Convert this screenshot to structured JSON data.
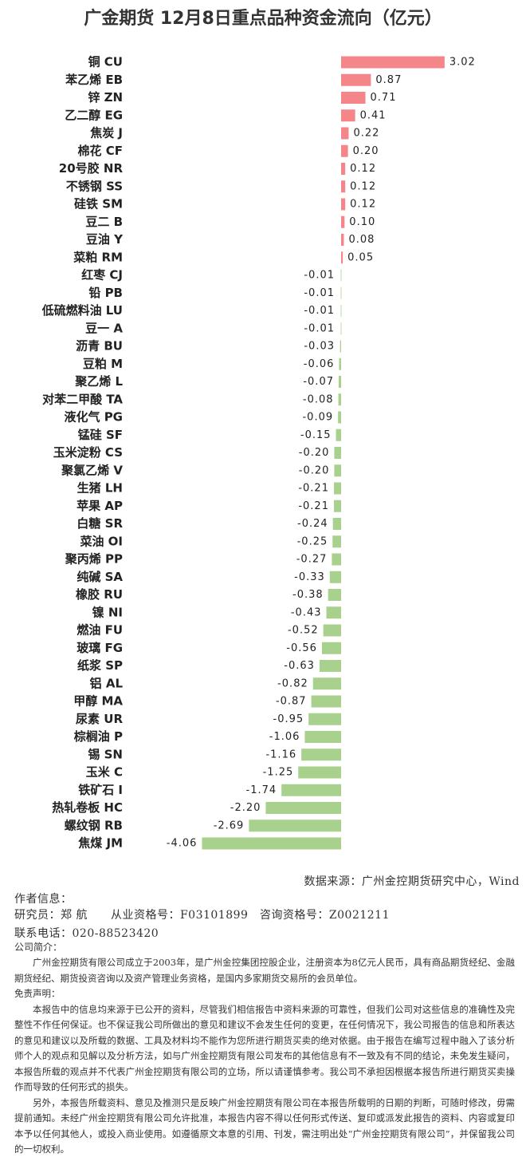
{
  "chart_data": {
    "type": "hbar",
    "title": "广金期货 12月8日重点品种资金流向（亿元）",
    "categories": [
      "铜 CU",
      "苯乙烯 EB",
      "锌 ZN",
      "乙二醇 EG",
      "焦炭 J",
      "棉花 CF",
      "20号胶 NR",
      "不锈钢 SS",
      "硅铁 SM",
      "豆二 B",
      "豆油 Y",
      "菜粕 RM",
      "红枣 CJ",
      "铅 PB",
      "低硫燃料油 LU",
      "豆一 A",
      "沥青 BU",
      "豆粕 M",
      "聚乙烯 L",
      "对苯二甲酸 TA",
      "液化气 PG",
      "锰硅 SF",
      "玉米淀粉 CS",
      "聚氯乙烯 V",
      "生猪 LH",
      "苹果 AP",
      "白糖 SR",
      "菜油 OI",
      "聚丙烯 PP",
      "纯碱 SA",
      "橡胶 RU",
      "镍 NI",
      "燃油 FU",
      "玻璃 FG",
      "纸浆 SP",
      "铝 AL",
      "甲醇 MA",
      "尿素 UR",
      "棕榈油 P",
      "锡 SN",
      "玉米 C",
      "铁矿石 I",
      "热轧卷板 HC",
      "螺纹钢 RB",
      "焦煤 JM"
    ],
    "values": [
      3.02,
      0.87,
      0.71,
      0.41,
      0.22,
      0.2,
      0.12,
      0.12,
      0.12,
      0.1,
      0.08,
      0.05,
      -0.01,
      -0.01,
      -0.01,
      -0.01,
      -0.03,
      -0.06,
      -0.07,
      -0.08,
      -0.09,
      -0.15,
      -0.2,
      -0.2,
      -0.21,
      -0.21,
      -0.24,
      -0.25,
      -0.27,
      -0.33,
      -0.38,
      -0.43,
      -0.52,
      -0.56,
      -0.63,
      -0.82,
      -0.87,
      -0.95,
      -1.06,
      -1.16,
      -1.25,
      -1.74,
      -2.2,
      -2.69,
      -4.06
    ],
    "value_labels": [
      "3.02",
      "0.87",
      "0.71",
      "0.41",
      "0.22",
      "0.20",
      "0.12",
      "0.12",
      "0.12",
      "0.10",
      "0.08",
      "0.05",
      "-0.01",
      "-0.01",
      "-0.01",
      "-0.01",
      "-0.03",
      "-0.06",
      "-0.07",
      "-0.08",
      "-0.09",
      "-0.15",
      "-0.20",
      "-0.20",
      "-0.21",
      "-0.21",
      "-0.24",
      "-0.25",
      "-0.27",
      "-0.33",
      "-0.38",
      "-0.43",
      "-0.52",
      "-0.56",
      "-0.63",
      "-0.82",
      "-0.87",
      "-0.95",
      "-1.06",
      "-1.16",
      "-1.25",
      "-1.74",
      "-2.20",
      "-2.69",
      "-4.06"
    ],
    "positive_color": "#f4868a",
    "negative_color": "#a9d18e"
  },
  "footer": {
    "source": "数据来源：广州金控期货研究中心，Wind",
    "author_heading": "作者信息：",
    "researcher": "研究员：郑 航　　从业资格号：F03101899　咨询资格号：Z0021211",
    "phone": "联系电话：020-88523420",
    "company_heading": "公司简介：",
    "company": "广州金控期货有限公司成立于2003年，是广州金控集团控股企业，注册资本为8亿元人民币，具有商品期货经纪、金融期货经纪、期货投资咨询以及资产管理业务资格，是国内多家期货交易所的会员单位。",
    "disclaimer_heading": "免责声明：",
    "disclaimer_1": "本报告中的信息均来源于已公开的资料，尽管我们相信报告中资料来源的可靠性，但我们公司对这些信息的准确性及完整性不作任何保证。也不保证我公司所做出的意见和建议不会发生任何的变更，在任何情况下，我公司报告的信息和所表达的意见和建议以及所载的数据、工具及材料均不能作为您所进行期货买卖的绝对依据。由于报告在编写过程中融入了该分析师个人的观点和见解以及分析方法，如与广州金控期货有限公司发布的其他信息有不一致及有不同的结论，未免发生疑问，本报告所载的观点并不代表广州金控期货有限公司的立场，所以请谨慎参考。我公司不承担因根据本报告所进行期货买卖操作而导致的任何形式的损失。",
    "disclaimer_2": "另外，本报告所载资料、意见及推测只是反映广州金控期货有限公司在本报告所载明的日期的判断，可随时修改，毋需提前通知。未经广州金控期货有限公司允许批准，本报告内容不得以任何形式传送、复印或派发此报告的资料、内容或复印本予以任何其他人，或投入商业使用。如遵循原文本意的引用、刊发，需注明出处“广州金控期货有限公司”，并保留我公司的一切权利。"
  }
}
